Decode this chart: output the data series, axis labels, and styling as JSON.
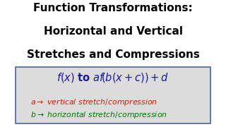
{
  "title_line1": "Function Transformations:",
  "title_line2": "Horizontal and Vertical",
  "title_line3": "Stretches and Compressions",
  "title_fontsize": 11.0,
  "title_color": "#000000",
  "box_bg_color": "#dcdcdc",
  "box_edge_color": "#4466aa",
  "formula_color": "#1a1aaa",
  "formula_fontsize": 10.5,
  "annotation1_color": "#cc2200",
  "annotation2_color": "#007700",
  "annotation_fontsize": 7.8,
  "bg_color": "#ffffff"
}
